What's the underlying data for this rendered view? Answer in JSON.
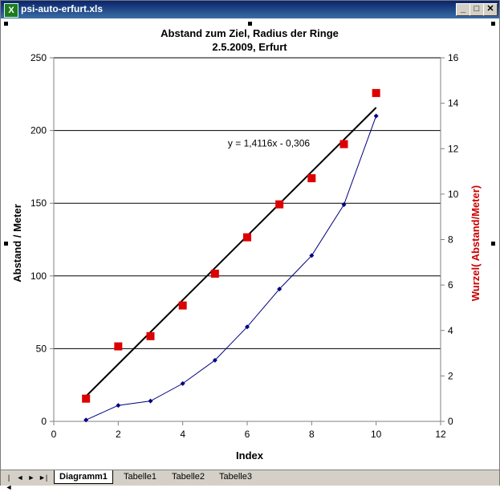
{
  "window": {
    "title": "psi-auto-erfurt.xls",
    "app_icon": "excel-icon"
  },
  "window_controls": {
    "minimize": "_",
    "maximize": "□",
    "close": "✕"
  },
  "sheet_tabs": {
    "nav": [
      "|◄",
      "◄",
      "►",
      "►|"
    ],
    "items": [
      "Diagramm1",
      "Tabelle1",
      "Tabelle2",
      "Tabelle3"
    ],
    "active": "Diagramm1"
  },
  "chart_data": {
    "type": "line",
    "title": "Abstand zum Ziel, Radius der Ringe",
    "subtitle": "2.5.2009, Erfurt",
    "xlabel": "Index",
    "ylabel": "Abstand / Meter",
    "y2label": "Wurzel( Abstand/Meter)",
    "xlim": [
      0,
      12
    ],
    "ylim": [
      0,
      250
    ],
    "y2lim": [
      0,
      16
    ],
    "xticks": [
      "0",
      "2",
      "4",
      "6",
      "8",
      "10",
      "12"
    ],
    "yticks": [
      "0",
      "50",
      "100",
      "150",
      "200",
      "250"
    ],
    "y2ticks": [
      "0",
      "2",
      "4",
      "6",
      "8",
      "10",
      "12",
      "14",
      "16"
    ],
    "grid": "horizontal",
    "colors": {
      "primary": "#000080",
      "secondary": "#dd0000",
      "trend": "#000000",
      "y2label": "#cc0000"
    },
    "series": [
      {
        "axis": "primary",
        "marker": "diamond",
        "x": [
          1,
          2,
          3,
          4,
          5,
          6,
          7,
          8,
          9,
          10
        ],
        "y": [
          1,
          11,
          14,
          26,
          42,
          65,
          91,
          114,
          149,
          210
        ]
      },
      {
        "axis": "secondary",
        "marker": "square",
        "x": [
          1,
          2,
          3,
          4,
          5,
          6,
          7,
          8,
          9,
          10
        ],
        "y": [
          1.0,
          3.3,
          3.75,
          5.1,
          6.5,
          8.1,
          9.55,
          10.7,
          12.2,
          14.45
        ]
      }
    ],
    "trendline": {
      "axis": "secondary",
      "slope": 1.4116,
      "intercept": -0.306,
      "x_range": [
        1,
        10
      ],
      "label": "y = 1,4116x - 0,306"
    }
  }
}
